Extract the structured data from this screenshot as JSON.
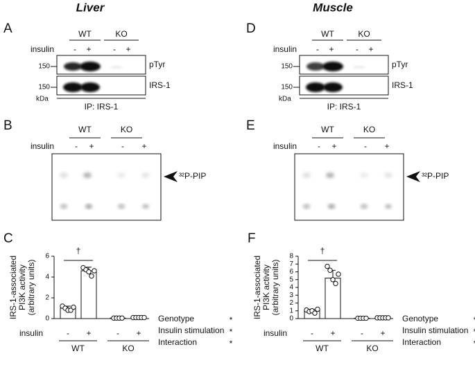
{
  "titles": [
    "Liver",
    "Muscle"
  ],
  "blots": [
    {
      "letter": "A",
      "groups": [
        "WT",
        "KO"
      ],
      "insulin": "insulin",
      "signs": [
        "-",
        "+",
        "-",
        "+"
      ],
      "markers": [
        "150",
        "150"
      ],
      "unit": "kDa",
      "bands": [
        "pTyr",
        "IRS-1"
      ],
      "ip": "IP: IRS-1"
    },
    {
      "letter": "D",
      "groups": [
        "WT",
        "KO"
      ],
      "insulin": "insulin",
      "signs": [
        "-",
        "+",
        "-",
        "+"
      ],
      "markers": [
        "150",
        "150"
      ],
      "unit": "kDa",
      "bands": [
        "pTyr",
        "IRS-1"
      ],
      "ip": "IP: IRS-1"
    }
  ],
  "kinase": [
    {
      "letter": "B",
      "groups": [
        "WT",
        "KO"
      ],
      "insulin": "insulin",
      "signs": [
        "-",
        "+",
        "-",
        "+"
      ],
      "label": "³²P-PIP"
    },
    {
      "letter": "E",
      "groups": [
        "WT",
        "KO"
      ],
      "insulin": "insulin",
      "signs": [
        "-",
        "+",
        "-",
        "+"
      ],
      "label": "³²P-PIP"
    }
  ],
  "chart_data": [
    {
      "type": "bar",
      "panel": "C",
      "ylabel": [
        "IRS-1-associated",
        "PI3K activity",
        "(arbitrary units)"
      ],
      "xlabel": "insulin",
      "categories": [
        "-",
        "+",
        "-",
        "+"
      ],
      "groups": [
        "WT",
        "KO"
      ],
      "values": [
        1.0,
        4.6,
        0.05,
        0.1
      ],
      "errors": [
        0.2,
        0.35,
        0.02,
        0.03
      ],
      "points": [
        [
          1.2,
          1.0,
          0.8,
          0.8,
          1.1
        ],
        [
          4.9,
          4.7,
          4.5,
          4.1,
          4.6
        ],
        [
          0.05,
          0.05,
          0.05,
          0.05
        ],
        [
          0.1,
          0.1,
          0.1,
          0.1,
          0.1
        ]
      ],
      "color": "#ffffff",
      "ylim": [
        0,
        6
      ],
      "yticks": [
        0,
        2,
        4,
        6
      ],
      "annotation": "†",
      "stats": [
        "Genotype",
        "Insulin stimulation",
        "Interaction"
      ],
      "stat_marks": [
        "*",
        "*",
        "*"
      ]
    },
    {
      "type": "bar",
      "panel": "F",
      "ylabel": [
        "IRS-1-associated",
        "PI3K activity",
        "(arbitrary units)"
      ],
      "xlabel": "insulin",
      "categories": [
        "-",
        "+",
        "-",
        "+"
      ],
      "groups": [
        "WT",
        "KO"
      ],
      "values": [
        1.0,
        5.2,
        0.05,
        0.1
      ],
      "errors": [
        0.2,
        1.0,
        0.02,
        0.03
      ],
      "points": [
        [
          1.1,
          0.9,
          1.0,
          0.7,
          1.2
        ],
        [
          6.7,
          6.2,
          5.0,
          4.5,
          5.7
        ],
        [
          0.05,
          0.05,
          0.05,
          0.05
        ],
        [
          0.1,
          0.1,
          0.1,
          0.1,
          0.1
        ]
      ],
      "color": "#ffffff",
      "ylim": [
        0,
        8
      ],
      "yticks": [
        0,
        1,
        2,
        3,
        4,
        5,
        6,
        7,
        8
      ],
      "annotation": "†",
      "stats": [
        "Genotype",
        "Insulin stimulation",
        "Interaction"
      ],
      "stat_marks": [
        "*",
        "*",
        "*"
      ]
    }
  ]
}
